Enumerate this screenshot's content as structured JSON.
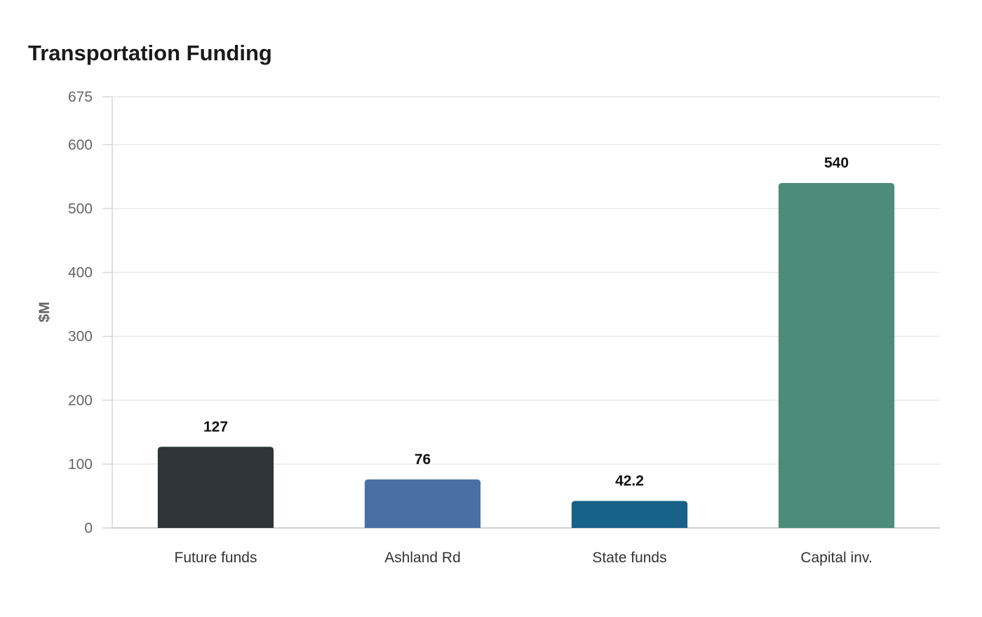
{
  "chart_data": {
    "type": "bar",
    "title": "Transportation Funding",
    "xlabel": "",
    "ylabel": "$M",
    "categories": [
      "Future funds",
      "Ashland Rd",
      "State funds",
      "Capital inv."
    ],
    "values": [
      127,
      76,
      42.2,
      540
    ],
    "value_labels": [
      "127",
      "76",
      "42.2",
      "540"
    ],
    "colors": [
      "#2e3538",
      "#4a6fa5",
      "#186189",
      "#4e8c7a"
    ],
    "ylim": [
      0,
      675
    ],
    "yticks": [
      0,
      100,
      200,
      300,
      400,
      500,
      600,
      675
    ],
    "grid": true,
    "legend": "none"
  }
}
